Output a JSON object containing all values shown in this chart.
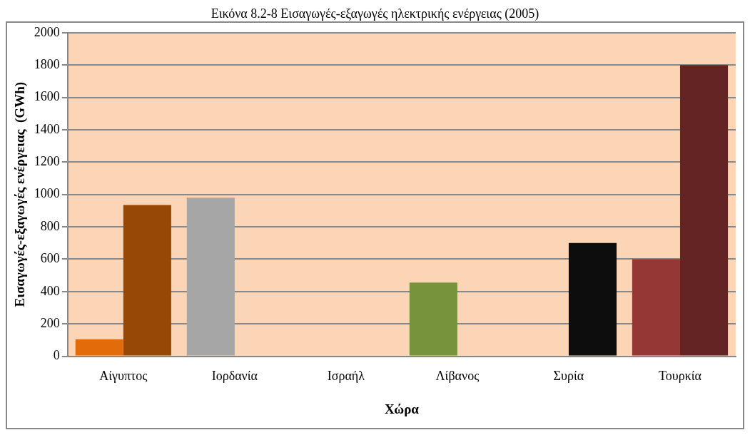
{
  "chart_data": {
    "type": "bar",
    "title": "Εικόνα 8.2-8 Εισαγωγές-εξαγωγές ηλεκτρικής ενέργειας (2005)",
    "xlabel": "Χώρα",
    "ylabel": "Εισαγωγές-εξαγωγές ενέργειας  (GWh)",
    "categories": [
      "Αίγυπτος",
      "Ιορδανία",
      "Ισραήλ",
      "Λίβανος",
      "Συρία",
      "Τουρκία"
    ],
    "series": [
      {
        "colors": [
          "#e36c0a",
          "#a6a6a6",
          "#a6a6a6",
          "#77933c",
          "#0d0d0d",
          "#953735"
        ],
        "values": [
          105,
          980,
          null,
          455,
          null,
          600
        ]
      },
      {
        "colors": [
          "#974806",
          "#a6a6a6",
          "#a6a6a6",
          "#77933c",
          "#0d0d0d",
          "#632423"
        ],
        "values": [
          935,
          null,
          null,
          null,
          700,
          1800
        ]
      }
    ],
    "ylim": [
      0,
      2000
    ],
    "yticks": [
      0,
      200,
      400,
      600,
      800,
      1000,
      1200,
      1400,
      1600,
      1800,
      2000
    ],
    "grid": "y",
    "legend": false
  }
}
